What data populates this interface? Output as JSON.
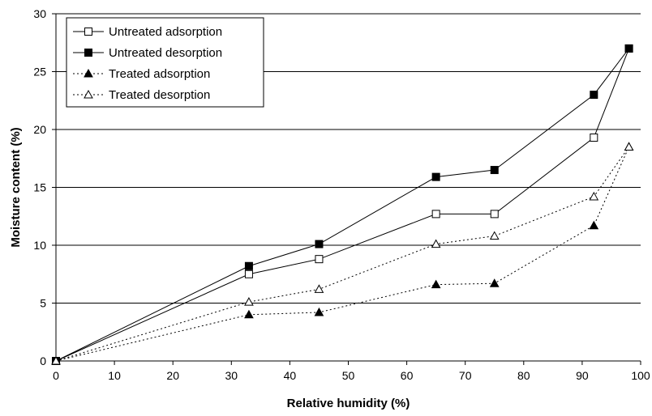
{
  "chart_data": {
    "type": "line",
    "title": "",
    "xlabel": "Relative humidity (%)",
    "ylabel": "Moisture content (%)",
    "xlim": [
      0,
      100
    ],
    "ylim": [
      0,
      30
    ],
    "x_ticks": [
      0,
      10,
      20,
      30,
      40,
      50,
      60,
      70,
      80,
      90,
      100
    ],
    "y_ticks": [
      0,
      5,
      10,
      15,
      20,
      25,
      30
    ],
    "grid": "horizontal",
    "legend_position": "top-left",
    "series": [
      {
        "name": "Untreated adsorption",
        "marker": "open-square",
        "line": "solid",
        "x": [
          0,
          33,
          45,
          65,
          75,
          92,
          98
        ],
        "y": [
          0,
          7.5,
          8.8,
          12.7,
          12.7,
          19.3,
          27.0
        ]
      },
      {
        "name": "Untreated desorption",
        "marker": "filled-square",
        "line": "solid",
        "x": [
          0,
          33,
          45,
          65,
          75,
          92,
          98
        ],
        "y": [
          0,
          8.2,
          10.1,
          15.9,
          16.5,
          23.0,
          27.0
        ]
      },
      {
        "name": "Treated adsorption",
        "marker": "filled-triangle",
        "line": "dotted",
        "x": [
          0,
          33,
          45,
          65,
          75,
          92,
          98
        ],
        "y": [
          0,
          4.0,
          4.2,
          6.6,
          6.7,
          11.7,
          18.5
        ]
      },
      {
        "name": "Treated desorption",
        "marker": "open-triangle",
        "line": "dotted",
        "x": [
          0,
          33,
          45,
          65,
          75,
          92,
          98
        ],
        "y": [
          0,
          5.1,
          6.2,
          10.1,
          10.8,
          14.2,
          18.5
        ]
      }
    ],
    "colors": {
      "line": "#000000",
      "grid": "#000000",
      "background": "#ffffff"
    }
  }
}
